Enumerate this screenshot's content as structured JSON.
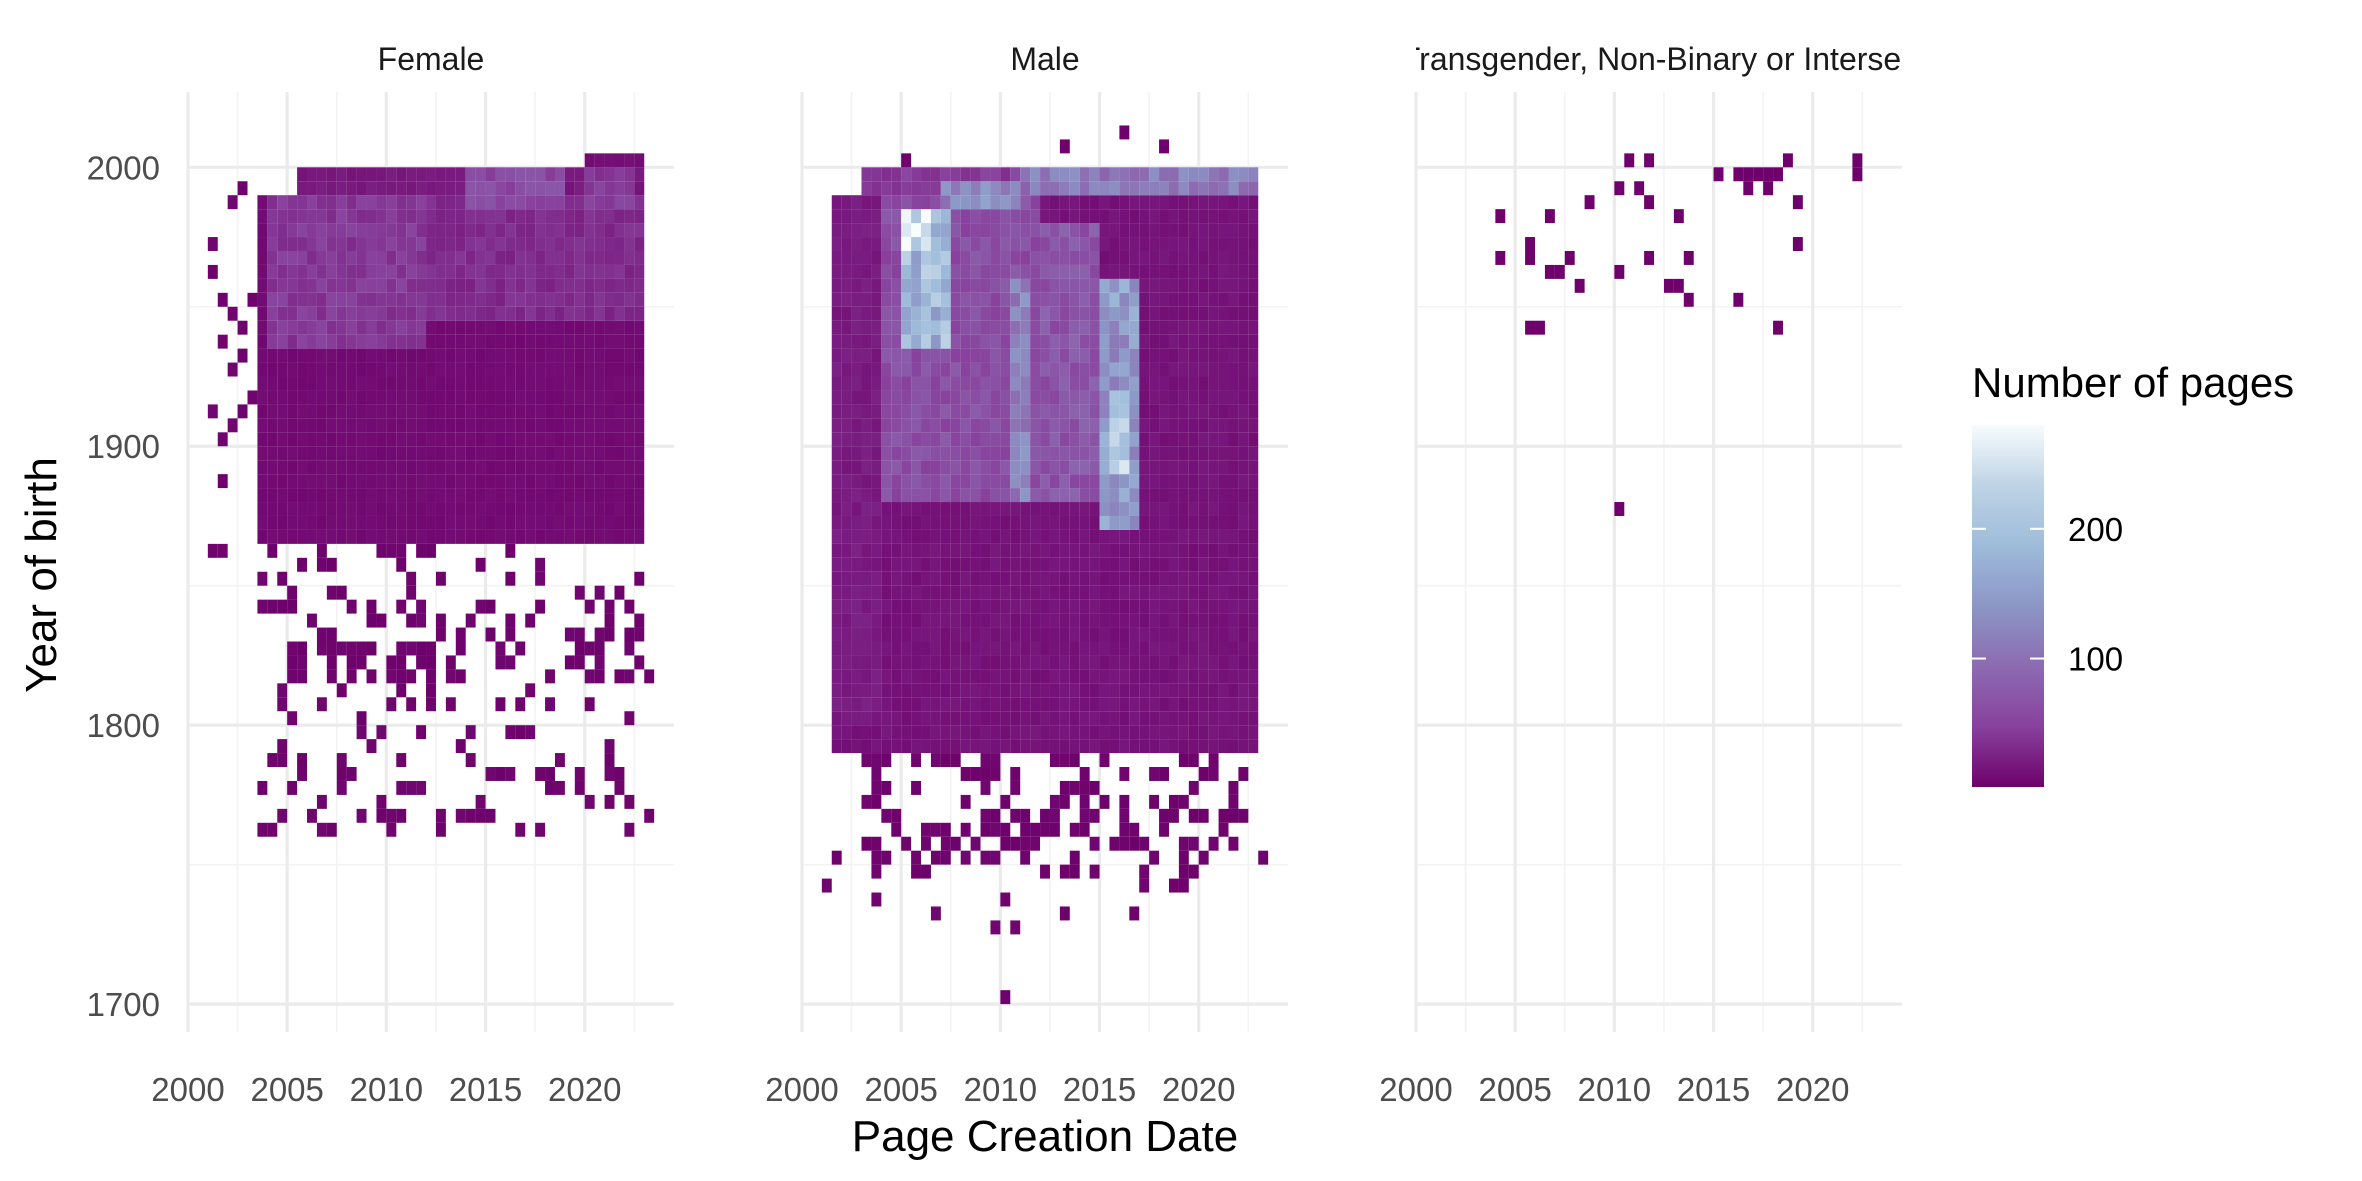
{
  "chart_data": {
    "type": "heatmap",
    "title": "",
    "xlabel": "Page Creation Date",
    "ylabel": "Year of birth",
    "xlim": [
      2000,
      2024.5
    ],
    "ylim": [
      1690,
      2027
    ],
    "x_ticks": [
      2000,
      2005,
      2010,
      2015,
      2020
    ],
    "y_ticks": [
      1700,
      1800,
      1900,
      2000
    ],
    "grid": true,
    "legend": {
      "title": "Number of pages",
      "placement": "right",
      "range": [
        1,
        280
      ],
      "ticks": [
        100,
        200
      ],
      "palette": [
        "#6e016b",
        "#88419d",
        "#8c6bb1",
        "#8c96c6",
        "#9ebcda",
        "#bfd3e6",
        "#f7fcfd"
      ]
    },
    "binning": {
      "x_bin_years": 0.5,
      "y_bin_years": 5
    },
    "panels": [
      {
        "name": "Female",
        "regions": [
          {
            "x": [
              2003.5,
              2023
            ],
            "y": [
              1865,
              1990
            ],
            "value": 8
          },
          {
            "x": [
              2005.5,
              2023
            ],
            "y": [
              1990,
              2000
            ],
            "value": 18
          },
          {
            "x": [
              2020,
              2023
            ],
            "y": [
              2000,
              2005
            ],
            "value": 10
          },
          {
            "x": [
              2004,
              2012
            ],
            "y": [
              1935,
              1990
            ],
            "value": 42
          },
          {
            "x": [
              2012,
              2023
            ],
            "y": [
              1945,
              1990
            ],
            "value": 32
          },
          {
            "x": [
              2014,
              2019
            ],
            "y": [
              1985,
              2000
            ],
            "value": 58
          },
          {
            "x": [
              2020,
              2022.5
            ],
            "y": [
              1985,
              2000
            ],
            "value": 45
          }
        ],
        "scatter": [
          {
            "x": [
              2003,
              2023
            ],
            "y": [
              1760,
              1865
            ],
            "count": 200
          },
          {
            "x": [
              2001,
              2004
            ],
            "y": [
              1840,
              1990
            ],
            "count": 25
          },
          {
            "x": [
              2005,
              2023
            ],
            "y": [
              1815,
              1830
            ],
            "count": 40
          }
        ]
      },
      {
        "name": "Male",
        "regions": [
          {
            "x": [
              2001.5,
              2023
            ],
            "y": [
              1790,
              1990
            ],
            "value": 14
          },
          {
            "x": [
              2003,
              2023
            ],
            "y": [
              1990,
              2000
            ],
            "value": 45
          },
          {
            "x": [
              2004,
              2012
            ],
            "y": [
              1880,
              1990
            ],
            "value": 62
          },
          {
            "x": [
              2012,
              2015
            ],
            "y": [
              1880,
              1980
            ],
            "value": 70
          },
          {
            "x": [
              2015,
              2017
            ],
            "y": [
              1870,
              1960
            ],
            "value": 145
          },
          {
            "x": [
              2005,
              2007.5
            ],
            "y": [
              1935,
              1985
            ],
            "value": 190
          },
          {
            "x": [
              2005,
              2006.5
            ],
            "y": [
              1970,
              1985
            ],
            "value": 270
          },
          {
            "x": [
              2007,
              2011
            ],
            "y": [
              1985,
              1995
            ],
            "value": 125
          },
          {
            "x": [
              2011,
              2023
            ],
            "y": [
              1990,
              2000
            ],
            "value": 110
          },
          {
            "x": [
              2015.5,
              2016.5
            ],
            "y": [
              1890,
              1920
            ],
            "value": 210
          },
          {
            "x": [
              2010.5,
              2011.5
            ],
            "y": [
              1880,
              1960
            ],
            "value": 120
          },
          {
            "x": [
              2001.5,
              2004
            ],
            "y": [
              1800,
              1990
            ],
            "value": 20
          },
          {
            "x": [
              2017,
              2023
            ],
            "y": [
              1800,
              1990
            ],
            "value": 12
          }
        ],
        "scatter": [
          {
            "x": [
              2003,
              2022
            ],
            "y": [
              1745,
              1790
            ],
            "count": 170
          },
          {
            "x": [
              2000.5,
              2023
            ],
            "y": [
              1725,
              1760
            ],
            "count": 22
          }
        ],
        "points": [
          {
            "x": 2010,
            "y": 1700
          },
          {
            "x": 2016,
            "y": 2010
          },
          {
            "x": 2013,
            "y": 2005
          },
          {
            "x": 2018,
            "y": 2005
          },
          {
            "x": 2005,
            "y": 2000
          }
        ]
      },
      {
        "name": "Transgender, Non-Binary or Intersex",
        "points": [
          {
            "x": 2004,
            "y": 1980
          },
          {
            "x": 2004,
            "y": 1965
          },
          {
            "x": 2005.5,
            "y": 1970
          },
          {
            "x": 2005.5,
            "y": 1965
          },
          {
            "x": 2006.5,
            "y": 1980
          },
          {
            "x": 2006.5,
            "y": 1960
          },
          {
            "x": 2007,
            "y": 1960
          },
          {
            "x": 2007.5,
            "y": 1965
          },
          {
            "x": 2008,
            "y": 1955
          },
          {
            "x": 2008.5,
            "y": 1985
          },
          {
            "x": 2005.5,
            "y": 1940
          },
          {
            "x": 2006,
            "y": 1940
          },
          {
            "x": 2010,
            "y": 1990
          },
          {
            "x": 2010,
            "y": 1960
          },
          {
            "x": 2010.5,
            "y": 2000
          },
          {
            "x": 2011,
            "y": 1990
          },
          {
            "x": 2011.5,
            "y": 2000
          },
          {
            "x": 2011.5,
            "y": 1985
          },
          {
            "x": 2011.5,
            "y": 1965
          },
          {
            "x": 2013,
            "y": 1980
          },
          {
            "x": 2013,
            "y": 1955
          },
          {
            "x": 2013.5,
            "y": 1950
          },
          {
            "x": 2012.5,
            "y": 1955
          },
          {
            "x": 2013.5,
            "y": 1965
          },
          {
            "x": 2015,
            "y": 1995
          },
          {
            "x": 2016,
            "y": 1995
          },
          {
            "x": 2016.5,
            "y": 1995
          },
          {
            "x": 2017,
            "y": 1995
          },
          {
            "x": 2017.5,
            "y": 1995
          },
          {
            "x": 2016.5,
            "y": 1990
          },
          {
            "x": 2017.5,
            "y": 1990
          },
          {
            "x": 2018,
            "y": 1995
          },
          {
            "x": 2018.5,
            "y": 2000
          },
          {
            "x": 2019,
            "y": 1985
          },
          {
            "x": 2019,
            "y": 1970
          },
          {
            "x": 2016,
            "y": 1950
          },
          {
            "x": 2018,
            "y": 1940
          },
          {
            "x": 2022,
            "y": 2000
          },
          {
            "x": 2022,
            "y": 1995
          },
          {
            "x": 2010,
            "y": 1875
          }
        ]
      }
    ]
  }
}
